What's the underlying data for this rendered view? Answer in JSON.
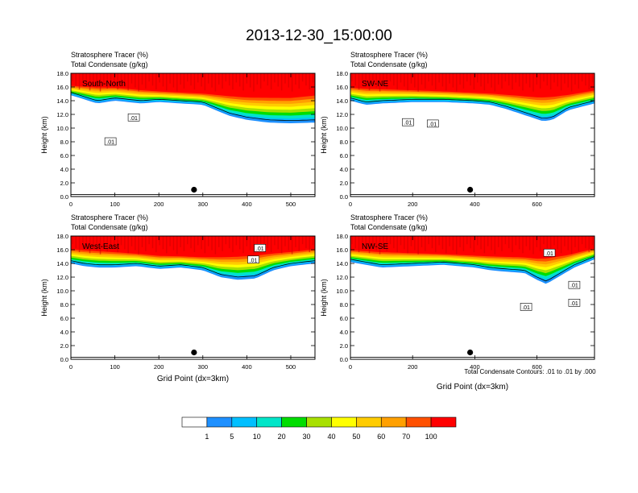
{
  "title": "2013-12-30_15:00:00",
  "footnote": "Total Condensate Contours: .01 to .01 by .000",
  "colors": {
    "bands": [
      "#ffffff",
      "#1e90ff",
      "#00bfff",
      "#00e5c8",
      "#00dd00",
      "#a8e000",
      "#ffff00",
      "#ffcc00",
      "#ffa000",
      "#ff5000",
      "#ff0000"
    ]
  },
  "colorbar": {
    "labels": [
      "1",
      "5",
      "10",
      "20",
      "30",
      "40",
      "50",
      "60",
      "70",
      "100"
    ]
  },
  "chart_data": [
    {
      "type": "heatmap",
      "panel_label": "South-North",
      "subtitle_1": "Stratosphere Tracer   (%)",
      "subtitle_2": "Total Condensate   (g/kg)",
      "ylabel": "Height (km)",
      "xlabel": "",
      "xlim": [
        0,
        555
      ],
      "ylim": [
        0,
        18
      ],
      "xticks": [
        "0",
        "100",
        "200",
        "300",
        "400",
        "500"
      ],
      "yticks": [
        "0.0",
        "2.0",
        "4.0",
        "6.0",
        "8.0",
        "10.0",
        "12.0",
        "14.0",
        "16.0",
        "18.0"
      ],
      "contour_labels": [
        {
          "text": ".01",
          "x": 143,
          "y": 11.5
        },
        {
          "text": ".01",
          "x": 90,
          "y": 8.0
        }
      ],
      "tracer_base_km": [
        [
          0,
          14.8
        ],
        [
          20,
          14.4
        ],
        [
          40,
          14.0
        ],
        [
          60,
          13.6
        ],
        [
          80,
          13.8
        ],
        [
          100,
          14.0
        ],
        [
          130,
          13.8
        ],
        [
          160,
          13.6
        ],
        [
          200,
          13.8
        ],
        [
          250,
          13.6
        ],
        [
          300,
          13.4
        ],
        [
          330,
          12.6
        ],
        [
          360,
          11.8
        ],
        [
          400,
          11.2
        ],
        [
          450,
          10.8
        ],
        [
          500,
          10.7
        ],
        [
          555,
          10.8
        ]
      ],
      "tracer_top_km": [
        [
          0,
          16.4
        ],
        [
          100,
          16.2
        ],
        [
          200,
          15.6
        ],
        [
          300,
          15.3
        ],
        [
          400,
          15.0
        ],
        [
          500,
          15.0
        ],
        [
          555,
          15.4
        ]
      ],
      "marker": {
        "x": 280,
        "y": 1.0
      }
    },
    {
      "type": "heatmap",
      "panel_label": "SW-NE",
      "subtitle_1": "Stratosphere Tracer   (%)",
      "subtitle_2": "Total Condensate   (g/kg)",
      "ylabel": "Height (km)",
      "xlabel": "",
      "xlim": [
        0,
        785
      ],
      "ylim": [
        0,
        18
      ],
      "xticks": [
        "0",
        "200",
        "400",
        "600"
      ],
      "yticks": [
        "0.0",
        "2.0",
        "4.0",
        "6.0",
        "8.0",
        "10.0",
        "12.0",
        "14.0",
        "16.0",
        "18.0"
      ],
      "contour_labels": [
        {
          "text": ".01",
          "x": 185,
          "y": 10.8
        },
        {
          "text": ".01",
          "x": 265,
          "y": 10.6
        }
      ],
      "tracer_base_km": [
        [
          0,
          14.0
        ],
        [
          50,
          13.4
        ],
        [
          100,
          13.6
        ],
        [
          200,
          13.8
        ],
        [
          300,
          13.8
        ],
        [
          400,
          13.6
        ],
        [
          450,
          13.4
        ],
        [
          500,
          12.8
        ],
        [
          540,
          12.2
        ],
        [
          580,
          11.6
        ],
        [
          620,
          11.0
        ],
        [
          650,
          11.2
        ],
        [
          700,
          12.6
        ],
        [
          785,
          13.6
        ]
      ],
      "tracer_top_km": [
        [
          0,
          16.2
        ],
        [
          200,
          15.8
        ],
        [
          400,
          15.4
        ],
        [
          600,
          15.0
        ],
        [
          700,
          15.2
        ],
        [
          785,
          15.8
        ]
      ],
      "marker": {
        "x": 385,
        "y": 1.0
      }
    },
    {
      "type": "heatmap",
      "panel_label": "West-East",
      "subtitle_1": "Stratosphere Tracer   (%)",
      "subtitle_2": "Total Condensate   (g/kg)",
      "ylabel": "Height (km)",
      "xlabel": "Grid Point (dx=3km)",
      "xlim": [
        0,
        555
      ],
      "ylim": [
        0,
        18
      ],
      "xticks": [
        "0",
        "100",
        "200",
        "300",
        "400",
        "500"
      ],
      "yticks": [
        "0.0",
        "2.0",
        "4.0",
        "6.0",
        "8.0",
        "10.0",
        "12.0",
        "14.0",
        "16.0",
        "18.0"
      ],
      "contour_labels": [
        {
          "text": ".01",
          "x": 430,
          "y": 16.2
        },
        {
          "text": ".01",
          "x": 415,
          "y": 14.5
        }
      ],
      "tracer_base_km": [
        [
          0,
          14.0
        ],
        [
          30,
          13.6
        ],
        [
          60,
          13.4
        ],
        [
          100,
          13.4
        ],
        [
          150,
          13.6
        ],
        [
          200,
          13.2
        ],
        [
          250,
          13.4
        ],
        [
          300,
          13.0
        ],
        [
          340,
          12.0
        ],
        [
          380,
          11.6
        ],
        [
          420,
          11.8
        ],
        [
          460,
          13.0
        ],
        [
          500,
          13.6
        ],
        [
          555,
          14.0
        ]
      ],
      "tracer_top_km": [
        [
          0,
          16.4
        ],
        [
          100,
          16.0
        ],
        [
          200,
          15.4
        ],
        [
          300,
          15.2
        ],
        [
          400,
          15.6
        ],
        [
          500,
          16.0
        ],
        [
          555,
          16.4
        ]
      ],
      "marker": {
        "x": 280,
        "y": 1.0
      }
    },
    {
      "type": "heatmap",
      "panel_label": "NW-SE",
      "subtitle_1": "Stratosphere Tracer   (%)",
      "subtitle_2": "Total Condensate   (g/kg)",
      "ylabel": "Height (km)",
      "xlabel": "Grid Point (dx=3km)",
      "xlim": [
        0,
        785
      ],
      "ylim": [
        0,
        18
      ],
      "xticks": [
        "0",
        "200",
        "400",
        "600"
      ],
      "yticks": [
        "0.0",
        "2.0",
        "4.0",
        "6.0",
        "8.0",
        "10.0",
        "12.0",
        "14.0",
        "16.0",
        "18.0"
      ],
      "contour_labels": [
        {
          "text": ".01",
          "x": 720,
          "y": 10.8
        },
        {
          "text": ".01",
          "x": 565,
          "y": 7.6
        },
        {
          "text": ".01",
          "x": 720,
          "y": 8.2
        },
        {
          "text": ".01",
          "x": 640,
          "y": 15.5
        }
      ],
      "tracer_base_km": [
        [
          0,
          14.2
        ],
        [
          100,
          13.4
        ],
        [
          200,
          13.6
        ],
        [
          300,
          13.8
        ],
        [
          400,
          13.4
        ],
        [
          450,
          13.0
        ],
        [
          500,
          12.8
        ],
        [
          560,
          12.6
        ],
        [
          600,
          11.6
        ],
        [
          630,
          11.0
        ],
        [
          660,
          11.8
        ],
        [
          720,
          13.4
        ],
        [
          785,
          14.6
        ]
      ],
      "tracer_top_km": [
        [
          0,
          16.2
        ],
        [
          200,
          15.8
        ],
        [
          400,
          15.4
        ],
        [
          600,
          15.2
        ],
        [
          700,
          15.6
        ],
        [
          785,
          16.4
        ]
      ],
      "marker": {
        "x": 385,
        "y": 1.0
      }
    }
  ]
}
